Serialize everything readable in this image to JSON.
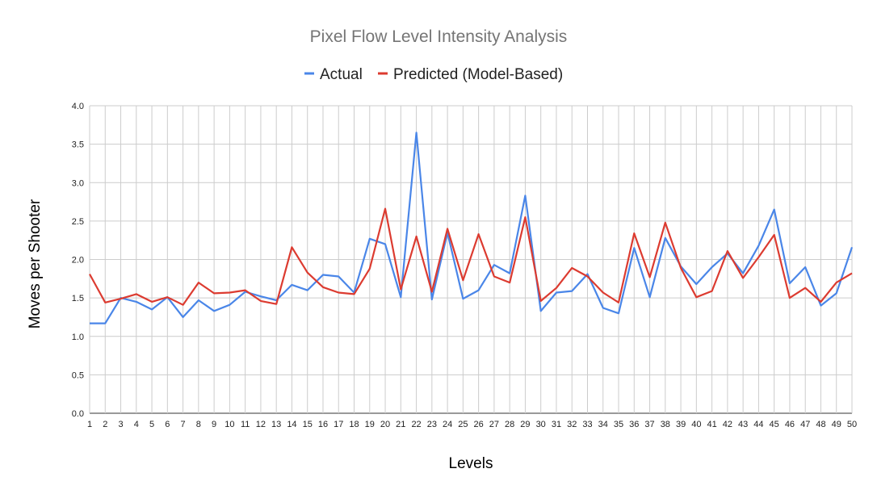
{
  "chart_data": {
    "type": "line",
    "title": "Pixel Flow Level Intensity Analysis",
    "xlabel": "Levels",
    "ylabel": "Moves per Shooter",
    "ylim": [
      0,
      4
    ],
    "yticks": [
      "0.0",
      "0.5",
      "1.0",
      "1.5",
      "2.0",
      "2.5",
      "3.0",
      "3.5",
      "4.0"
    ],
    "grid": true,
    "legend_position": "top",
    "categories": [
      "1",
      "2",
      "3",
      "4",
      "5",
      "6",
      "7",
      "8",
      "9",
      "10",
      "11",
      "12",
      "13",
      "14",
      "15",
      "16",
      "17",
      "18",
      "19",
      "20",
      "21",
      "22",
      "23",
      "24",
      "25",
      "26",
      "27",
      "28",
      "29",
      "30",
      "31",
      "32",
      "33",
      "34",
      "35",
      "36",
      "37",
      "38",
      "39",
      "40",
      "41",
      "42",
      "43",
      "44",
      "45",
      "46",
      "47",
      "48",
      "49",
      "50"
    ],
    "series": [
      {
        "name": "Actual",
        "color": "#4a86e8",
        "values": [
          1.17,
          1.17,
          1.5,
          1.45,
          1.35,
          1.51,
          1.25,
          1.47,
          1.33,
          1.41,
          1.58,
          1.52,
          1.47,
          1.67,
          1.6,
          1.8,
          1.78,
          1.57,
          2.27,
          2.2,
          1.51,
          3.65,
          1.48,
          2.35,
          1.49,
          1.6,
          1.93,
          1.82,
          2.83,
          1.33,
          1.57,
          1.59,
          1.81,
          1.37,
          1.3,
          2.15,
          1.51,
          2.28,
          1.91,
          1.68,
          1.9,
          2.08,
          1.82,
          2.18,
          2.65,
          1.69,
          1.9,
          1.4,
          1.56,
          2.16
        ]
      },
      {
        "name": "Predicted (Model-Based)",
        "color": "#dc3b30",
        "values": [
          1.81,
          1.44,
          1.49,
          1.55,
          1.45,
          1.51,
          1.41,
          1.7,
          1.56,
          1.57,
          1.6,
          1.46,
          1.42,
          2.16,
          1.83,
          1.64,
          1.57,
          1.55,
          1.88,
          2.66,
          1.61,
          2.3,
          1.58,
          2.4,
          1.73,
          2.33,
          1.78,
          1.7,
          2.55,
          1.46,
          1.63,
          1.89,
          1.78,
          1.57,
          1.44,
          2.34,
          1.77,
          2.48,
          1.89,
          1.51,
          1.59,
          2.11,
          1.76,
          2.03,
          2.32,
          1.5,
          1.63,
          1.45,
          1.7,
          1.82
        ]
      }
    ]
  }
}
